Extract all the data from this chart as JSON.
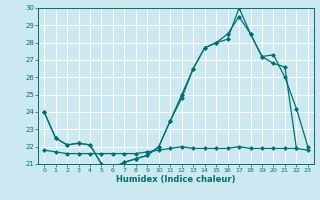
{
  "xlabel": "Humidex (Indice chaleur)",
  "bg_color": "#cce8f0",
  "line_color": "#007070",
  "grid_color": "#ffffff",
  "xlim": [
    -0.5,
    23.5
  ],
  "ylim": [
    21,
    30
  ],
  "yticks": [
    21,
    22,
    23,
    24,
    25,
    26,
    27,
    28,
    29,
    30
  ],
  "xticks": [
    0,
    1,
    2,
    3,
    4,
    5,
    6,
    7,
    8,
    9,
    10,
    11,
    12,
    13,
    14,
    15,
    16,
    17,
    18,
    19,
    20,
    21,
    22,
    23
  ],
  "line1_x": [
    0,
    1,
    2,
    3,
    4,
    5,
    6,
    7,
    8,
    9,
    10,
    11,
    12,
    13,
    14,
    15,
    16,
    17,
    18,
    19,
    20,
    21,
    22
  ],
  "line1_y": [
    24.0,
    22.5,
    22.1,
    22.2,
    22.1,
    21.0,
    20.8,
    21.1,
    21.3,
    21.5,
    22.0,
    23.5,
    25.0,
    26.5,
    27.7,
    28.0,
    28.2,
    30.0,
    28.5,
    27.2,
    26.8,
    26.6,
    21.9
  ],
  "line2_x": [
    0,
    1,
    2,
    3,
    4,
    5,
    6,
    7,
    8,
    9,
    10,
    11,
    12,
    13,
    14,
    15,
    16,
    17,
    18,
    19,
    20,
    21,
    22,
    23
  ],
  "line2_y": [
    24.0,
    22.5,
    22.1,
    22.2,
    22.1,
    21.0,
    20.8,
    21.1,
    21.3,
    21.5,
    22.0,
    23.5,
    24.8,
    26.5,
    27.7,
    28.0,
    28.5,
    29.5,
    28.5,
    27.2,
    27.3,
    26.0,
    24.2,
    22.0
  ],
  "line3_x": [
    0,
    1,
    2,
    3,
    4,
    5,
    6,
    7,
    8,
    9,
    10,
    11,
    12,
    13,
    14,
    15,
    16,
    17,
    18,
    19,
    20,
    21,
    22,
    23
  ],
  "line3_y": [
    21.8,
    21.7,
    21.6,
    21.6,
    21.6,
    21.6,
    21.6,
    21.6,
    21.6,
    21.7,
    21.8,
    21.9,
    22.0,
    21.9,
    21.9,
    21.9,
    21.9,
    22.0,
    21.9,
    21.9,
    21.9,
    21.9,
    21.9,
    21.8
  ]
}
